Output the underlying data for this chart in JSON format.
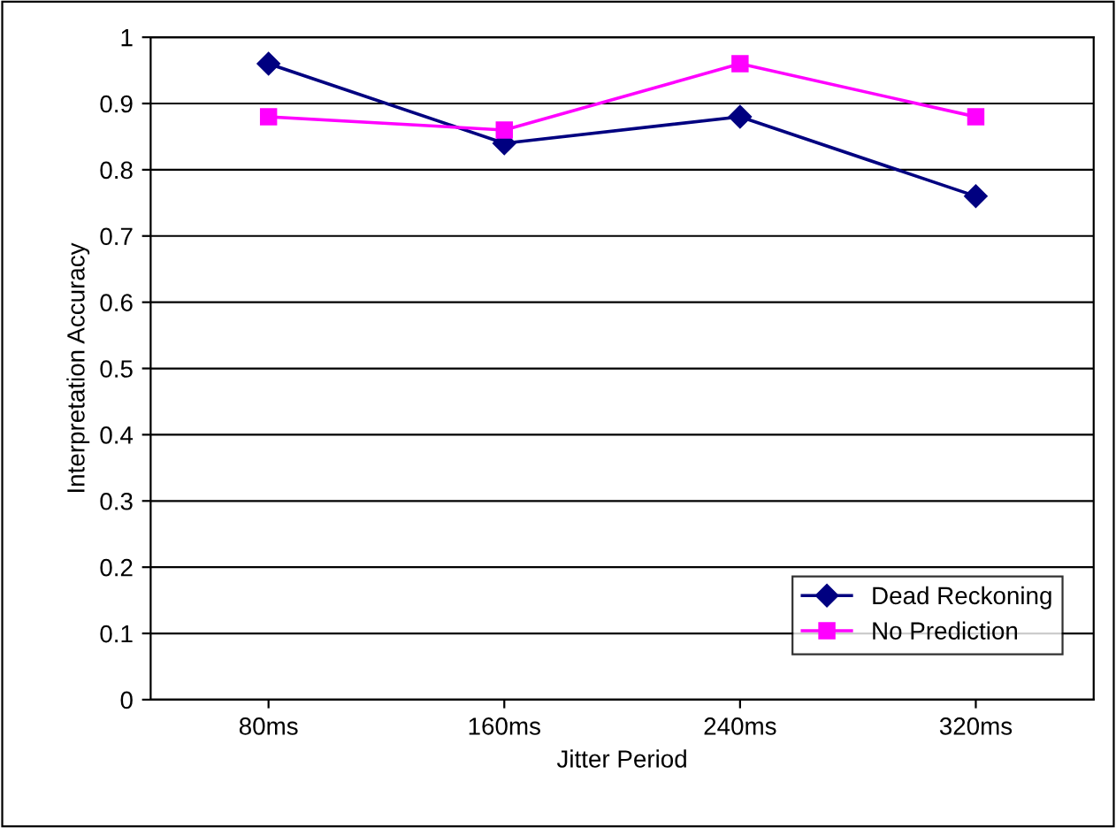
{
  "chart_data": {
    "type": "line",
    "xlabel": "Jitter Period",
    "ylabel": "Interpretation Accuracy",
    "categories": [
      "80ms",
      "160ms",
      "240ms",
      "320ms"
    ],
    "series": [
      {
        "name": "Dead Reckoning",
        "color": "#000080",
        "marker": "diamond",
        "values": [
          0.96,
          0.84,
          0.88,
          0.76
        ]
      },
      {
        "name": "No Prediction",
        "color": "#ff00ff",
        "marker": "square",
        "values": [
          0.88,
          0.86,
          0.96,
          0.88
        ]
      }
    ],
    "ylim": [
      0,
      1
    ],
    "yticks": [
      0,
      0.1,
      0.2,
      0.3,
      0.4,
      0.5,
      0.6,
      0.7,
      0.8,
      0.9,
      1
    ],
    "grid": "y",
    "legend": "bottom right",
    "line_style": "solid"
  }
}
